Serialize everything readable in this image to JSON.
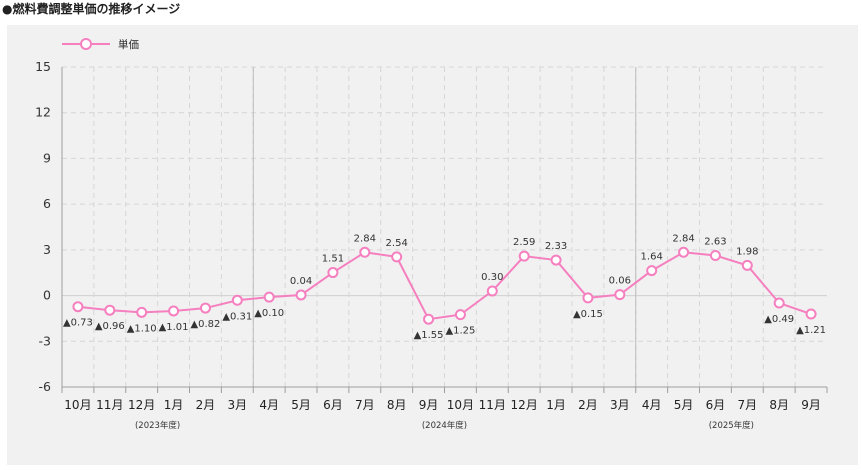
{
  "title": "●燃料費調整単価の推移イメージ",
  "chart_data": {
    "type": "line",
    "legend": {
      "position": "top-left",
      "entries": [
        "単価"
      ]
    },
    "series": [
      {
        "name": "単価",
        "color": "#f57fbf",
        "values": [
          -0.73,
          -0.96,
          -1.1,
          -1.01,
          -0.82,
          -0.31,
          -0.1,
          0.04,
          1.51,
          2.84,
          2.54,
          -1.55,
          -1.25,
          0.3,
          2.59,
          2.33,
          -0.15,
          0.06,
          1.64,
          2.84,
          2.63,
          1.98,
          -0.49,
          -1.21
        ],
        "labels": [
          "▲0.73",
          "▲0.96",
          "▲1.10",
          "▲1.01",
          "▲0.82",
          "▲0.31",
          "▲0.10",
          "0.04",
          "1.51",
          "2.84",
          "2.54",
          "▲1.55",
          "▲1.25",
          "0.30",
          "2.59",
          "2.33",
          "▲0.15",
          "0.06",
          "1.64",
          "2.84",
          "2.63",
          "1.98",
          "▲0.49",
          "▲1.21"
        ]
      }
    ],
    "categories": [
      "10月",
      "11月",
      "12月",
      "1月",
      "2月",
      "3月",
      "4月",
      "5月",
      "6月",
      "7月",
      "8月",
      "9月",
      "10月",
      "11月",
      "12月",
      "1月",
      "2月",
      "3月",
      "4月",
      "5月",
      "6月",
      "7月",
      "8月",
      "9月"
    ],
    "fiscal_years": [
      {
        "label": "(2023年度)",
        "start": 0,
        "end": 5
      },
      {
        "label": "(2024年度)",
        "start": 6,
        "end": 17
      },
      {
        "label": "(2025年度)",
        "start": 18,
        "end": 23
      }
    ],
    "ylim": [
      -6,
      15
    ],
    "yticks": [
      -6,
      -3,
      0,
      3,
      6,
      9,
      12,
      15
    ],
    "ytick_labels": [
      "-6",
      "-3",
      "0",
      "3",
      "6",
      "9",
      "12",
      "15"
    ],
    "grid": true
  }
}
